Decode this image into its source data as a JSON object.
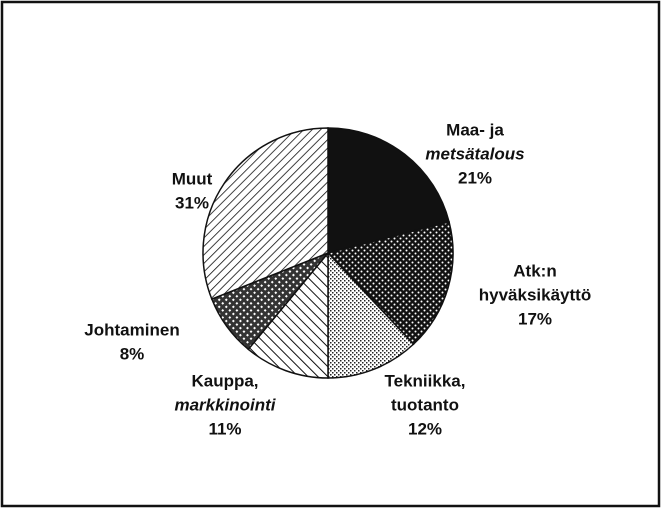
{
  "chart_data": {
    "type": "pie",
    "categories": [
      [
        "Maa- ja",
        "metsätalous"
      ],
      [
        "Atk:n",
        "hyväksikäyttö"
      ],
      [
        "Tekniikka,",
        "tuotanto"
      ],
      [
        "Kauppa,",
        "markkinointi"
      ],
      [
        "Johtaminen"
      ],
      [
        "Muut"
      ]
    ],
    "values": [
      21,
      17,
      12,
      11,
      8,
      31
    ],
    "value_labels": [
      "21%",
      "17%",
      "12%",
      "11%",
      "8%",
      "31%"
    ]
  }
}
